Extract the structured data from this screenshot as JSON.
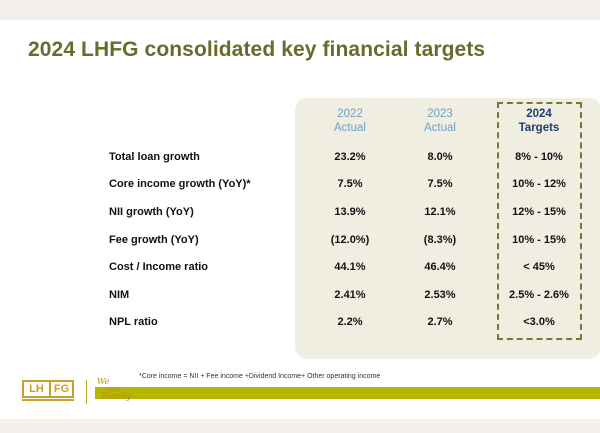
{
  "title": "2024 LHFG consolidated key financial targets",
  "columns": [
    {
      "year": "2022",
      "sub": "Actual"
    },
    {
      "year": "2023",
      "sub": "Actual"
    },
    {
      "year": "2024",
      "sub": "Targets"
    }
  ],
  "rows": [
    {
      "label": "Total loan growth",
      "v2022": "23.2%",
      "v2023": "8.0%",
      "t2024": "8% - 10%"
    },
    {
      "label": "Core income growth (YoY)*",
      "v2022": "7.5%",
      "v2023": "7.5%",
      "t2024": "10% - 12%"
    },
    {
      "label": "NII growth (YoY)",
      "v2022": "13.9%",
      "v2023": "12.1%",
      "t2024": "12% - 15%"
    },
    {
      "label": "Fee growth (YoY)",
      "v2022": "(12.0%)",
      "v2023": "(8.3%)",
      "t2024": "10% - 15%"
    },
    {
      "label": "Cost / Income ratio",
      "v2022": "44.1%",
      "v2023": "46.4%",
      "t2024": "< 45%"
    },
    {
      "label": "NIM",
      "v2022": "2.41%",
      "v2023": "2.53%",
      "t2024": "2.5% - 2.6%"
    },
    {
      "label": "NPL ratio",
      "v2022": "2.2%",
      "v2023": "2.7%",
      "t2024": "<3.0%"
    }
  ],
  "footnote": "*Core income = NII + Fee income +Dividend Income+ Other operating income",
  "logo": {
    "left": "LH",
    "right": "FG"
  },
  "slogan": {
    "line1": "We",
    "line2": "care",
    "line3": "Family"
  },
  "colors": {
    "title": "#6b6a2e",
    "actual": "#6f9fca",
    "target": "#1d3d72",
    "accent_bar": "#b5b600",
    "logo": "#c7a227"
  }
}
